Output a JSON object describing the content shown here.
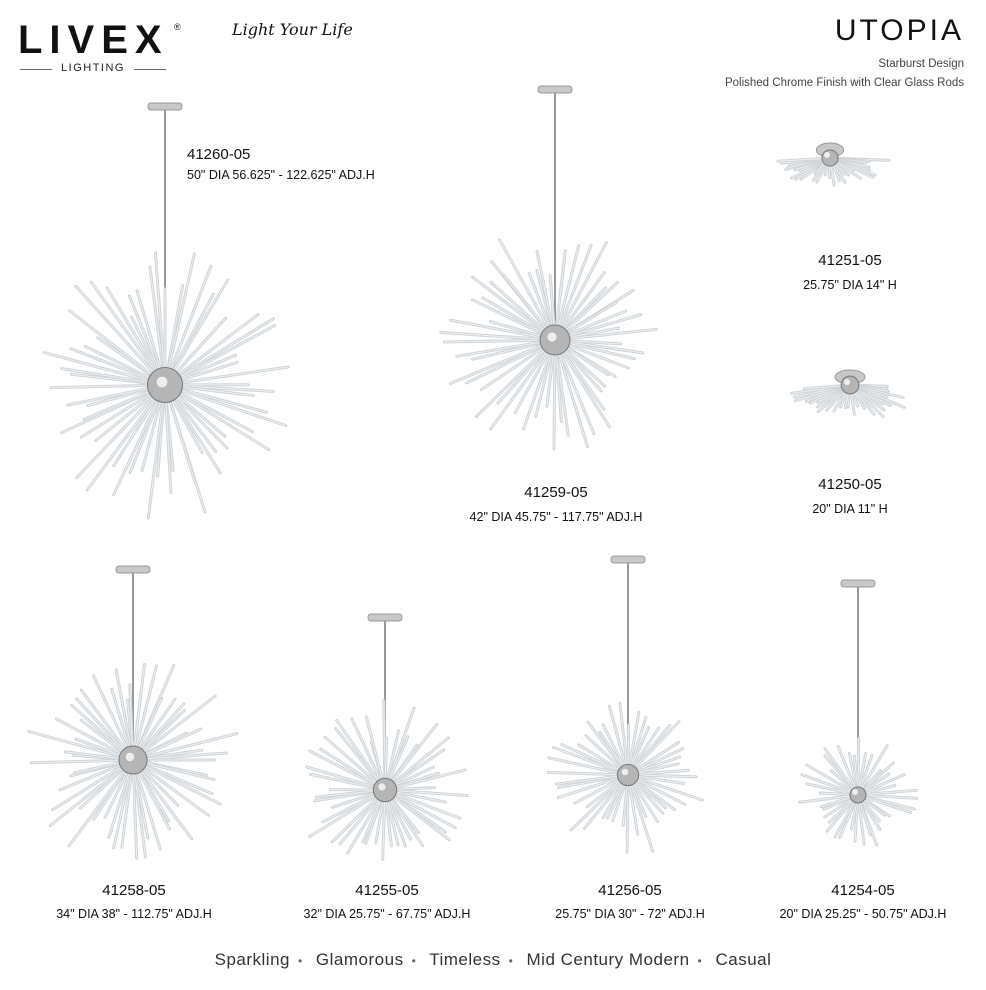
{
  "brand": {
    "name": "LIVEX",
    "reg": "®",
    "sub": "LIGHTING",
    "tagline": "Light Your Life"
  },
  "header": {
    "collection": "UTOPIA",
    "subtitle_1": "Starburst Design",
    "subtitle_2": "Polished Chrome Finish with Clear Glass Rods"
  },
  "products": [
    {
      "model": "41260-05",
      "spec": "50\" DIA  56.625\" - 122.625\" ADJ.H"
    },
    {
      "model": "41259-05",
      "spec": "42\" DIA  45.75\" - 117.75\" ADJ.H"
    },
    {
      "model": "41251-05",
      "spec": "25.75\" DIA  14\" H"
    },
    {
      "model": "41250-05",
      "spec": "20\" DIA  11\" H"
    },
    {
      "model": "41258-05",
      "spec": "34\" DIA  38\" - 112.75\" ADJ.H"
    },
    {
      "model": "41255-05",
      "spec": "32\" DIA  25.75\" - 67.75\" ADJ.H"
    },
    {
      "model": "41256-05",
      "spec": "25.75\" DIA  30\" - 72\" ADJ.H"
    },
    {
      "model": "41254-05",
      "spec": "20\" DIA  25.25\" - 50.75\" ADJ.H"
    }
  ],
  "tags": [
    "Sparkling",
    "Glamorous",
    "Timeless",
    "Mid Century Modern",
    "Casual"
  ],
  "colors": {
    "chrome": "#9a9a9a",
    "glass": "#cfd4d8",
    "text": "#111111"
  }
}
